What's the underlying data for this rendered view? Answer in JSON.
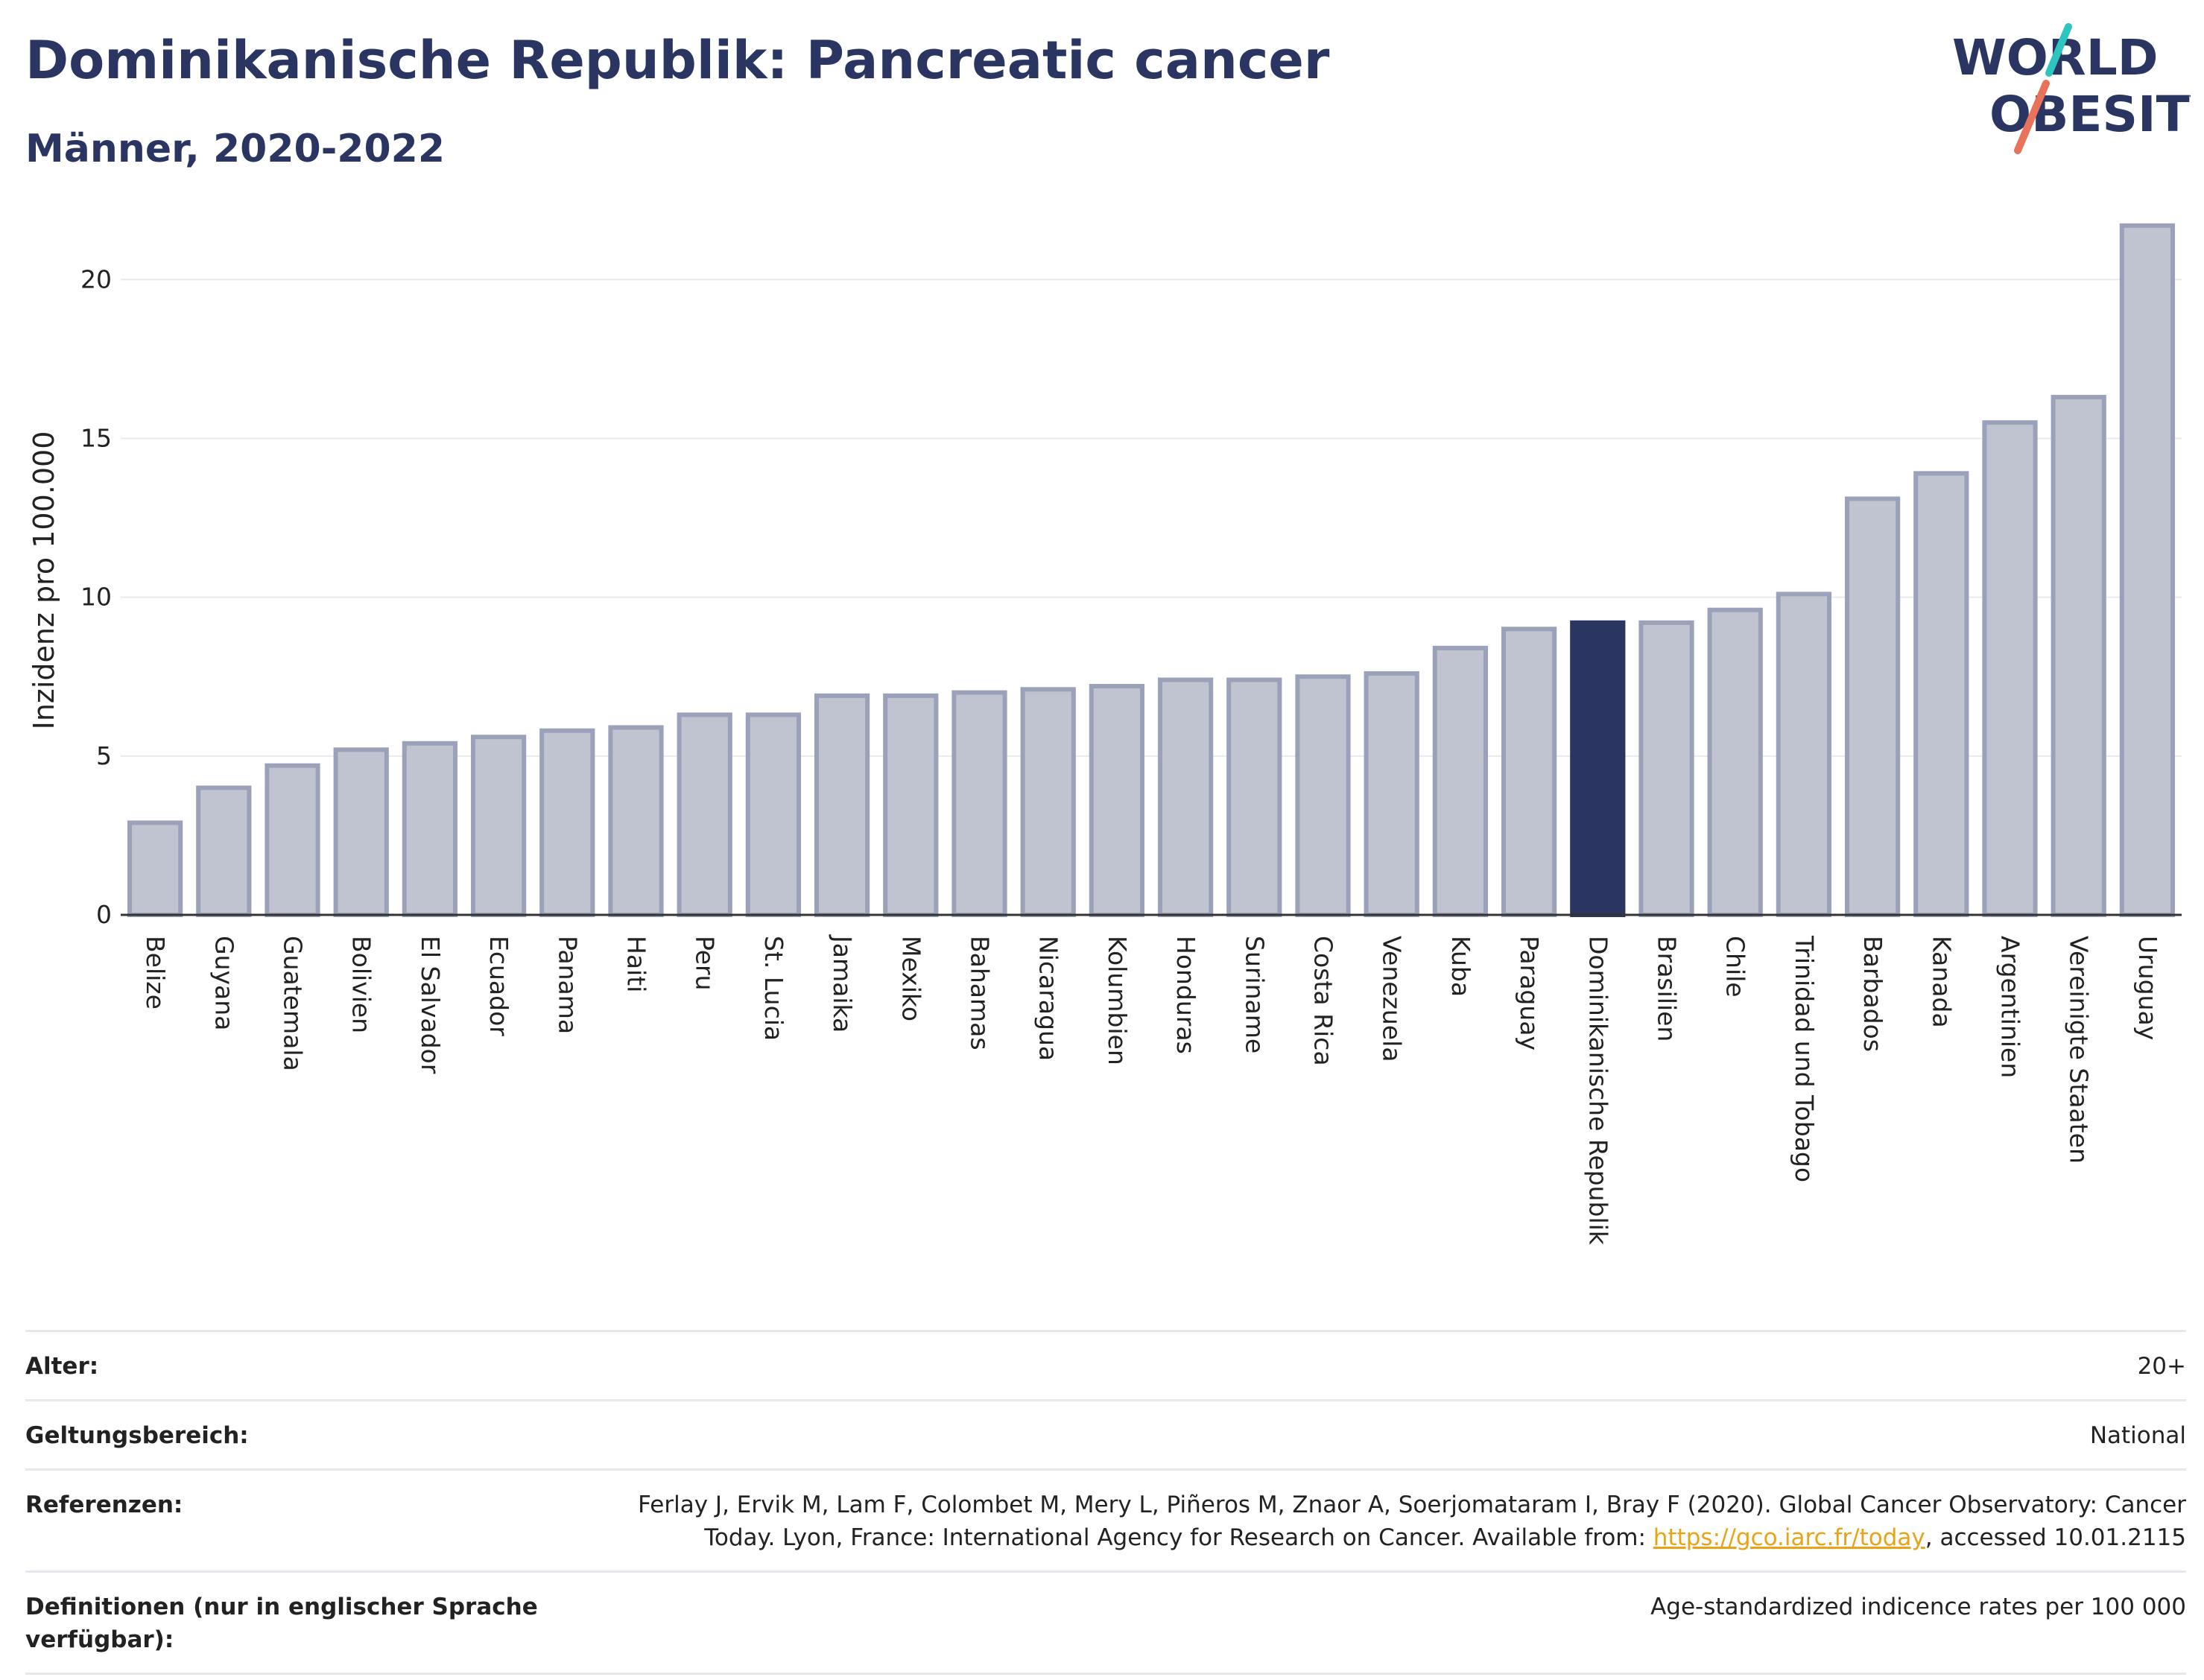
{
  "header": {
    "title": "Dominikanische Republik: Pancreatic cancer",
    "subtitle": "Männer, 2020-2022",
    "logo_line1": "WORLD",
    "logo_line2": "OBESITY"
  },
  "colors": {
    "bar_default": "#c0c4d1",
    "bar_border": "#9aa1b8",
    "bar_highlight": "#2b3561",
    "title": "#2b3561"
  },
  "chart_data": {
    "type": "bar",
    "ylabel": "Inzidenz pro 100.000",
    "ylim": [
      0,
      22
    ],
    "yticks": [
      0,
      5,
      10,
      15,
      20
    ],
    "highlight": "Dominikanische Republik",
    "categories": [
      "Belize",
      "Guyana",
      "Guatemala",
      "Bolivien",
      "El Salvador",
      "Ecuador",
      "Panama",
      "Haiti",
      "Peru",
      "St. Lucia",
      "Jamaika",
      "Mexiko",
      "Bahamas",
      "Nicaragua",
      "Kolumbien",
      "Honduras",
      "Suriname",
      "Costa Rica",
      "Venezuela",
      "Kuba",
      "Paraguay",
      "Dominikanische Republik",
      "Brasilien",
      "Chile",
      "Trinidad und Tobago",
      "Barbados",
      "Kanada",
      "Argentinien",
      "Vereinigte Staaten",
      "Uruguay"
    ],
    "values": [
      2.9,
      4.0,
      4.7,
      5.2,
      5.4,
      5.6,
      5.8,
      5.9,
      6.3,
      6.3,
      6.9,
      6.9,
      7.0,
      7.1,
      7.2,
      7.4,
      7.4,
      7.5,
      7.6,
      8.4,
      9.0,
      9.2,
      9.2,
      9.6,
      10.1,
      13.1,
      13.9,
      15.5,
      16.3,
      21.7
    ],
    "grid": true
  },
  "meta": {
    "age_label": "Alter:",
    "age_value": "20+",
    "scope_label": "Geltungsbereich:",
    "scope_value": "National",
    "ref_label": "Referenzen:",
    "ref_text_1": "Ferlay J, Ervik M, Lam F, Colombet M, Mery L, Piñeros M, Znaor A, Soerjomataram I, Bray F (2020). Global Cancer Observatory: Cancer Today. Lyon, France: International Agency for Research on Cancer. Available from: ",
    "ref_link": "https://gco.iarc.fr/today",
    "ref_text_2": ", accessed 10.01.2115",
    "def_label": "Definitionen (nur in englischer Sprache verfügbar):",
    "def_value": "Age-standardized indicence rates per 100 000"
  }
}
